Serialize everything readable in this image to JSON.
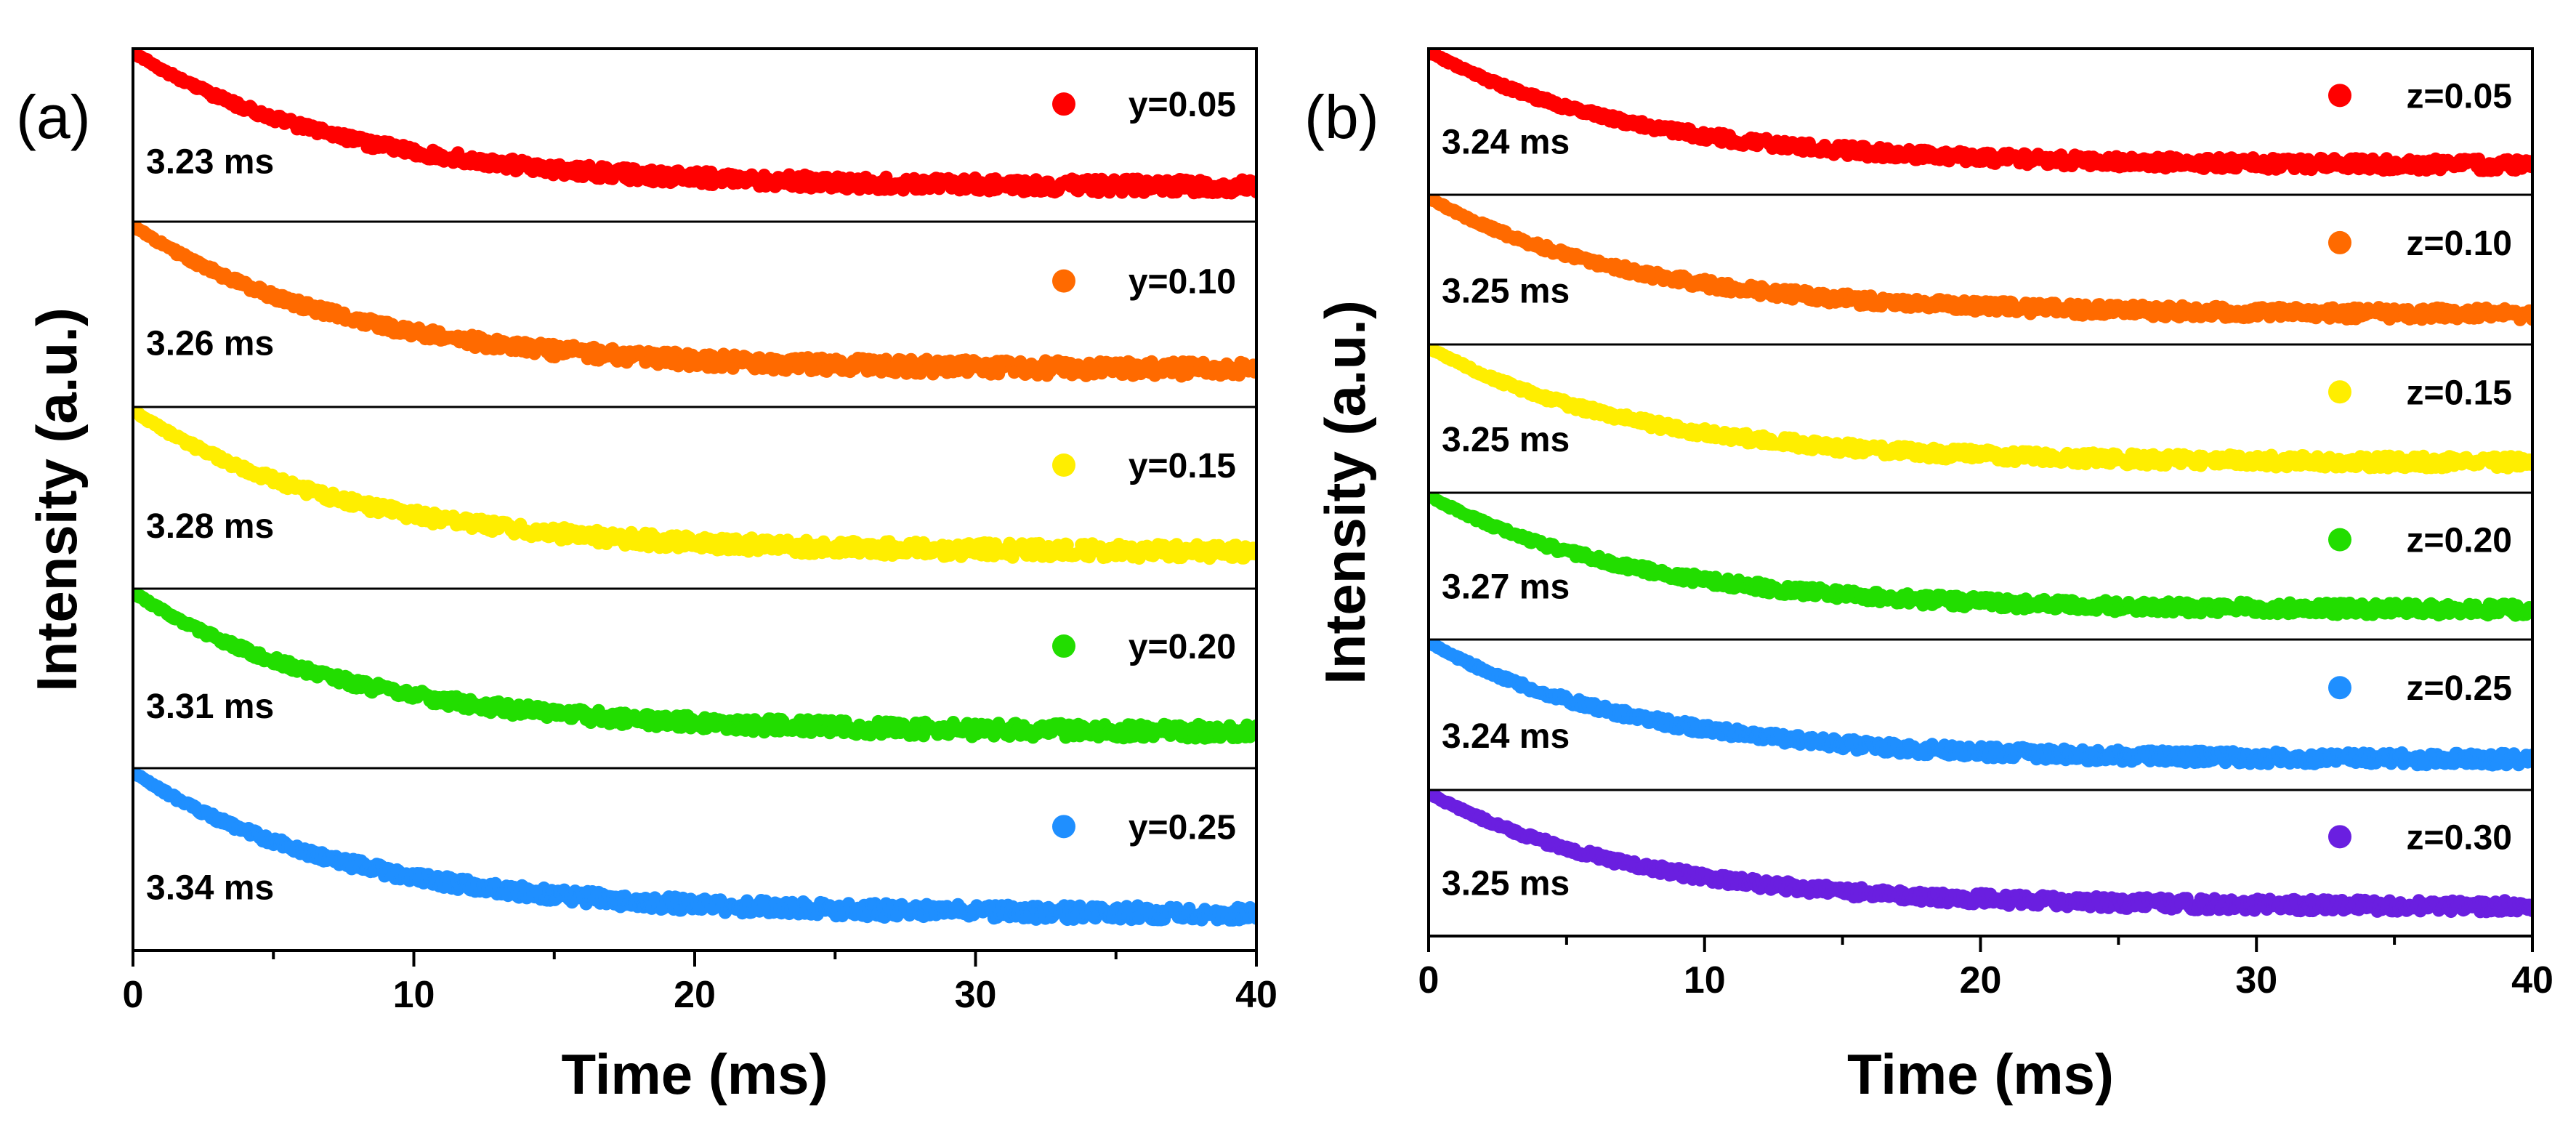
{
  "chart_data": [
    {
      "type": "scatter",
      "panel_label": "(a)",
      "xlabel": "Time (ms)",
      "ylabel": "Intensity (a.u.)",
      "xlim": [
        0,
        40
      ],
      "xticks": [
        "0",
        "10",
        "20",
        "30",
        "40"
      ],
      "grid": false,
      "legend_placement": "top-right of each stacked subplot",
      "series": [
        {
          "name": "y=0.05",
          "lifetime": "3.23 ms",
          "color": "#ff0000"
        },
        {
          "name": "y=0.10",
          "lifetime": "3.26 ms",
          "color": "#ff6a00"
        },
        {
          "name": "y=0.15",
          "lifetime": "3.28 ms",
          "color": "#ffee00"
        },
        {
          "name": "y=0.20",
          "lifetime": "3.31 ms",
          "color": "#22dd00"
        },
        {
          "name": "y=0.25",
          "lifetime": "3.34 ms",
          "color": "#1f8fff"
        }
      ]
    },
    {
      "type": "scatter",
      "panel_label": "(b)",
      "xlabel": "Time (ms)",
      "ylabel": "Intensity (a.u.)",
      "xlim": [
        0,
        40
      ],
      "xticks": [
        "0",
        "10",
        "20",
        "30",
        "40"
      ],
      "grid": false,
      "legend_placement": "top-right of each stacked subplot",
      "series": [
        {
          "name": "z=0.05",
          "lifetime": "3.24 ms",
          "color": "#ff0000"
        },
        {
          "name": "z=0.10",
          "lifetime": "3.25 ms",
          "color": "#ff6a00"
        },
        {
          "name": "z=0.15",
          "lifetime": "3.25 ms",
          "color": "#ffee00"
        },
        {
          "name": "z=0.20",
          "lifetime": "3.27 ms",
          "color": "#22dd00"
        },
        {
          "name": "z=0.25",
          "lifetime": "3.24 ms",
          "color": "#1f8fff"
        },
        {
          "name": "z=0.30",
          "lifetime": "3.25 ms",
          "color": "#6a1fe0"
        }
      ]
    }
  ]
}
